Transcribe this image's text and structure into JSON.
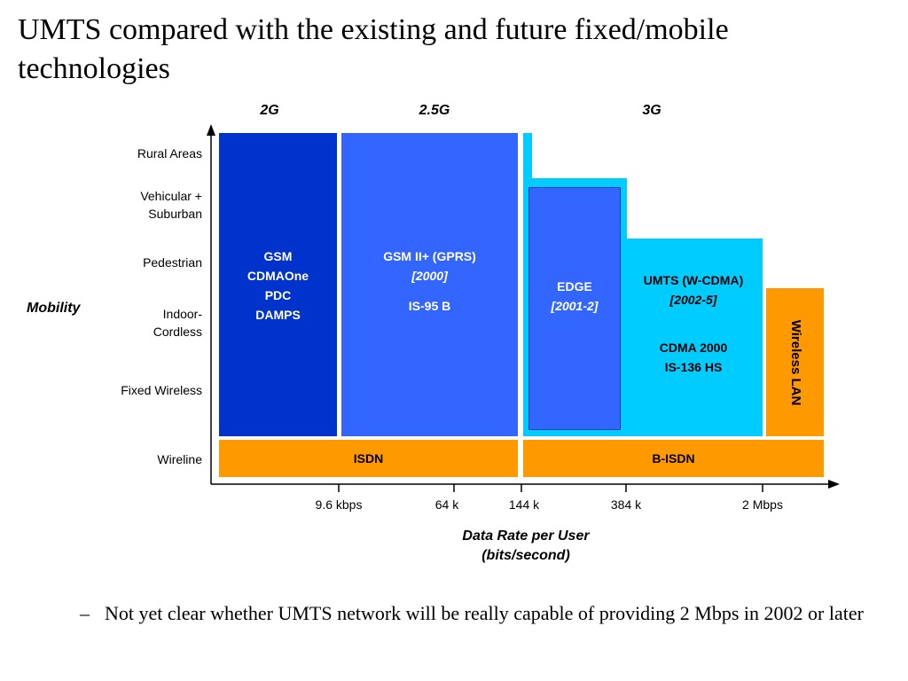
{
  "title": "UMTS compared with the existing and future fixed/mobile technologies",
  "generations": [
    "2G",
    "2.5G",
    "3G"
  ],
  "mobility_levels": [
    "Rural Areas",
    "Vehicular + Suburban",
    "Pedestrian",
    "Indoor-Cordless",
    "Fixed Wireless",
    "Wireline"
  ],
  "y_axis_label": "Mobility",
  "x_ticks": [
    "9.6 kbps",
    "64 k",
    "144 k",
    "384 k",
    "2 Mbps"
  ],
  "x_axis_label": "Data Rate per User (bits/second)",
  "blocks": {
    "gsm": [
      "GSM",
      "CDMAOne",
      "PDC",
      "DAMPS"
    ],
    "gprs": {
      "name": "GSM II+ (GPRS)",
      "year": "[2000]",
      "extra": "IS-95 B"
    },
    "edge": {
      "name": "EDGE",
      "year": "[2001-2]"
    },
    "umts": {
      "name": "UMTS (W-CDMA)",
      "year": "[2002-5]",
      "extra1": "CDMA 2000",
      "extra2": "IS-136 HS"
    },
    "wlan": "Wireless LAN",
    "isdn": "ISDN",
    "bisdn": "B-ISDN"
  },
  "colors": {
    "gsm": "#0033cc",
    "gprs": "#3366ff",
    "edge": "#3366ff",
    "umts": "#00ccff",
    "wireline": "#ff9900"
  },
  "bullet": "Not yet clear whether UMTS network will be really capable of providing 2 Mbps in 2002 or later"
}
